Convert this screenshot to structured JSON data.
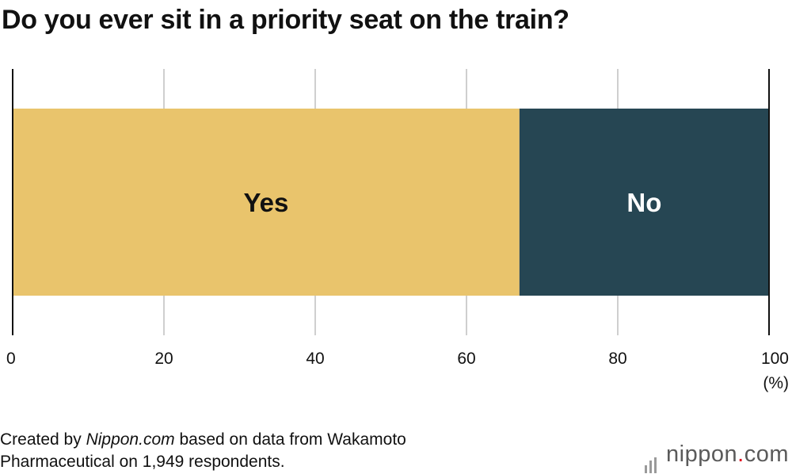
{
  "chart_data": {
    "type": "bar",
    "orientation": "horizontal-stacked",
    "title": "Do you ever sit in a priority seat on the train?",
    "xlim": [
      0,
      100
    ],
    "x_ticks": [
      0,
      20,
      40,
      60,
      80,
      100
    ],
    "x_unit": "(%)",
    "grid": true,
    "segments": [
      {
        "label": "Yes",
        "value": 67,
        "color": "#e9c46c",
        "text_color": "#111111"
      },
      {
        "label": "No",
        "value": 33,
        "color": "#264653",
        "text_color": "#ffffff"
      }
    ]
  },
  "source": {
    "prefix": "Created by ",
    "site": "Nippon.com",
    "suffix": " based on data from Wakamoto",
    "line2": "Pharmaceutical on 1,949 respondents."
  },
  "logo": {
    "name": "nippon",
    "dot": ".",
    "tld": "com"
  }
}
